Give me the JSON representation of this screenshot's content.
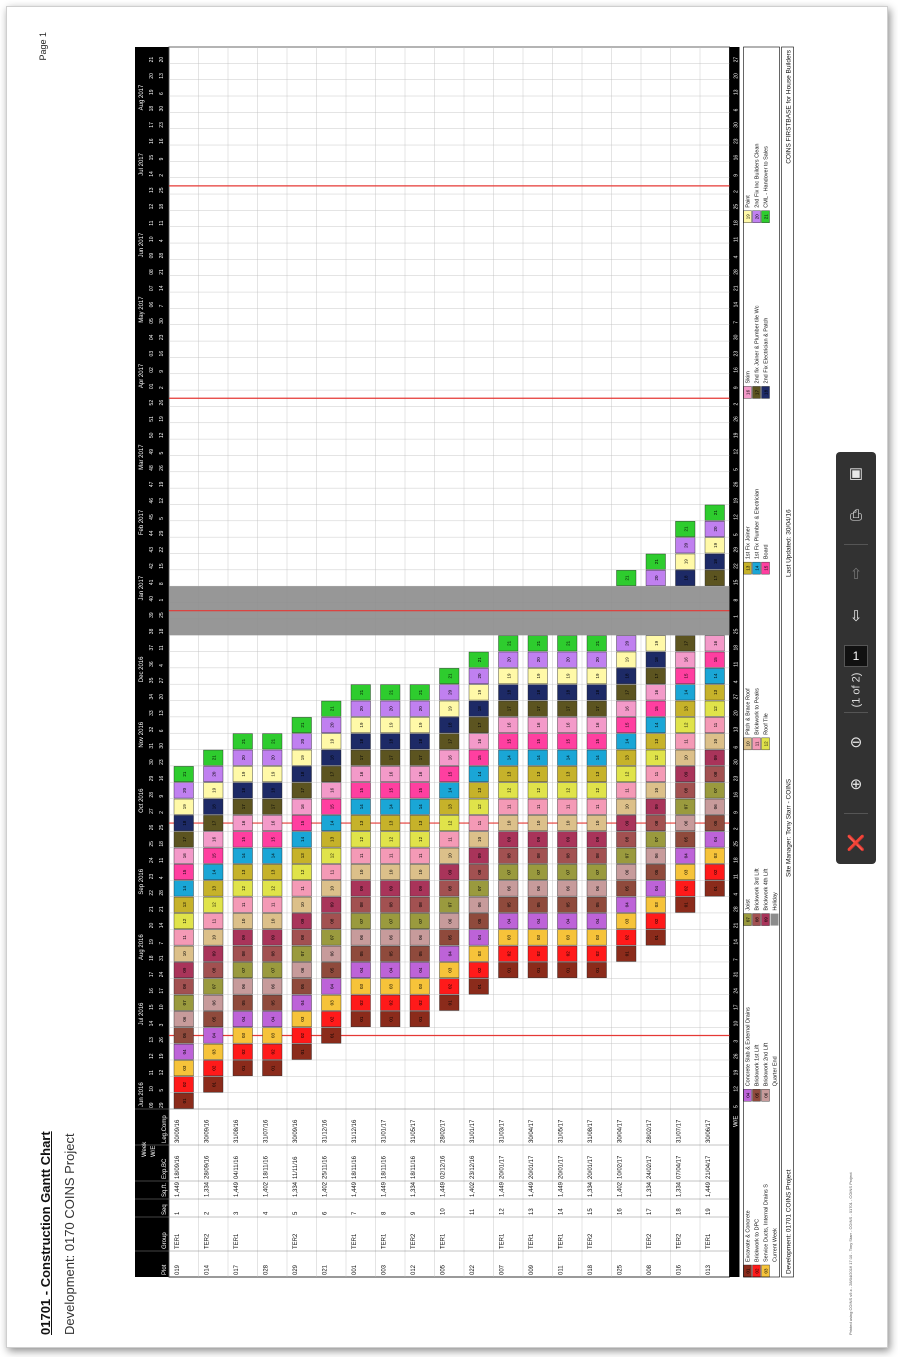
{
  "report": {
    "title": "01701 - Construction Gantt Chart",
    "development": "Development: 0170  COINS Project",
    "page": "Page 1",
    "footnote": "Printed using COINS v9.x - 28/04/2016 17:10 - Tony Starr - COINS - 01701 - COINS Project"
  },
  "headers": {
    "week": "Week",
    "we": "W/E",
    "cols": [
      "Plot",
      "Group",
      "Seq",
      "Sq.ft.",
      "Exp.BC",
      "Leg.Comp"
    ],
    "we_label": "W/E",
    "months": [
      "Jun 2016",
      "Jul 2016",
      "Aug 2016",
      "Sep 2016",
      "Oct 2016",
      "Nov 2016",
      "Dec 2016",
      "Jan 2017",
      "Feb 2017",
      "Mar 2017",
      "Apr 2017",
      "May 2017",
      "Jun 2017",
      "Jul 2017",
      "Aug 2017"
    ],
    "week_numbers": [
      "09",
      "10",
      "11",
      "12",
      "13",
      "14",
      "15",
      "16",
      "17",
      "18",
      "19",
      "20",
      "21",
      "22",
      "23",
      "24",
      "25",
      "26",
      "27",
      "28",
      "29",
      "30",
      "31",
      "32",
      "33",
      "34",
      "35",
      "36",
      "37",
      "38",
      "39",
      "40",
      "41",
      "42",
      "43",
      "44",
      "45",
      "46",
      "47",
      "48",
      "49",
      "50",
      "51",
      "52",
      "01",
      "02",
      "03",
      "04",
      "05",
      "06",
      "07",
      "08",
      "09",
      "10",
      "11",
      "12",
      "13",
      "14",
      "15",
      "16",
      "17",
      "18",
      "19",
      "20",
      "21"
    ],
    "week_days": [
      "29",
      "5",
      "12",
      "19",
      "26",
      "3",
      "10",
      "17",
      "24",
      "31",
      "7",
      "14",
      "21",
      "28",
      "4",
      "11",
      "18",
      "25",
      "2",
      "9",
      "16",
      "23",
      "30",
      "6",
      "13",
      "20",
      "27",
      "4",
      "11",
      "18",
      "25",
      "1",
      "8",
      "15",
      "22",
      "29",
      "5",
      "12",
      "19",
      "26",
      "5",
      "12",
      "19",
      "26",
      "2",
      "9",
      "16",
      "23",
      "30",
      "7",
      "14",
      "21",
      "28",
      "4",
      "11",
      "18",
      "25",
      "2",
      "9",
      "16",
      "23",
      "30",
      "6",
      "13",
      "20"
    ],
    "we_days": [
      "5",
      "12",
      "19",
      "26",
      "3",
      "10",
      "17",
      "24",
      "31",
      "7",
      "14",
      "21",
      "28",
      "4",
      "11",
      "18",
      "25",
      "2",
      "9",
      "16",
      "23",
      "30",
      "6",
      "13",
      "20",
      "27",
      "4",
      "11",
      "18",
      "25",
      "1",
      "8",
      "15",
      "22",
      "29",
      "5",
      "12",
      "19",
      "26",
      "5",
      "12",
      "19",
      "26",
      "2",
      "9",
      "16",
      "23",
      "30",
      "7",
      "14",
      "21",
      "28",
      "4",
      "11",
      "18",
      "25",
      "2",
      "9",
      "16",
      "23",
      "30",
      "6",
      "13",
      "20",
      "27"
    ]
  },
  "plots": [
    {
      "plot": "019",
      "group": "TER1",
      "seq": "1",
      "sqft": "1,449",
      "exp": "18/09/16",
      "comp": "30/09/16",
      "start": 0,
      "n": 21
    },
    {
      "plot": "014",
      "group": "TER2",
      "seq": "2",
      "sqft": "1,334",
      "exp": "28/09/16",
      "comp": "30/09/16",
      "start": 1,
      "n": 21
    },
    {
      "plot": "017",
      "group": "TER1",
      "seq": "3",
      "sqft": "1,449",
      "exp": "04/11/16",
      "comp": "31/08/16",
      "start": 2,
      "n": 21
    },
    {
      "plot": "028",
      "group": "",
      "seq": "4",
      "sqft": "1,402",
      "exp": "18/11/16",
      "comp": "31/07/16",
      "start": 2,
      "n": 21
    },
    {
      "plot": "029",
      "group": "TER2",
      "seq": "5",
      "sqft": "1,334",
      "exp": "11/11/16",
      "comp": "30/09/16",
      "start": 3,
      "n": 21
    },
    {
      "plot": "021",
      "group": "",
      "seq": "6",
      "sqft": "1,402",
      "exp": "25/11/16",
      "comp": "31/12/16",
      "start": 4,
      "n": 21
    },
    {
      "plot": "001",
      "group": "TER1",
      "seq": "7",
      "sqft": "1,449",
      "exp": "18/11/16",
      "comp": "31/12/16",
      "start": 5,
      "n": 21
    },
    {
      "plot": "003",
      "group": "TER1",
      "seq": "8",
      "sqft": "1,449",
      "exp": "18/11/16",
      "comp": "31/01/17",
      "start": 5,
      "n": 21
    },
    {
      "plot": "012",
      "group": "TER2",
      "seq": "9",
      "sqft": "1,334",
      "exp": "18/11/16",
      "comp": "31/05/17",
      "start": 5,
      "n": 21
    },
    {
      "plot": "005",
      "group": "TER1",
      "seq": "10",
      "sqft": "1,449",
      "exp": "02/12/16",
      "comp": "28/02/17",
      "start": 6,
      "n": 21
    },
    {
      "plot": "022",
      "group": "",
      "seq": "11",
      "sqft": "1,402",
      "exp": "23/12/16",
      "comp": "31/01/17",
      "start": 7,
      "n": 21
    },
    {
      "plot": "007",
      "group": "TER1",
      "seq": "12",
      "sqft": "1,449",
      "exp": "20/01/17",
      "comp": "31/03/17",
      "start": 8,
      "n": 21
    },
    {
      "plot": "009",
      "group": "TER1",
      "seq": "13",
      "sqft": "1,449",
      "exp": "20/01/17",
      "comp": "30/04/17",
      "start": 8,
      "n": 21
    },
    {
      "plot": "011",
      "group": "TER1",
      "seq": "14",
      "sqft": "1,449",
      "exp": "20/01/17",
      "comp": "31/05/17",
      "start": 8,
      "n": 21
    },
    {
      "plot": "018",
      "group": "TER2",
      "seq": "15",
      "sqft": "1,334",
      "exp": "20/01/17",
      "comp": "31/08/17",
      "start": 8,
      "n": 21
    },
    {
      "plot": "025",
      "group": "",
      "seq": "16",
      "sqft": "1,402",
      "exp": "10/02/17",
      "comp": "30/04/17",
      "start": 9,
      "n": 21
    },
    {
      "plot": "008",
      "group": "TER2",
      "seq": "17",
      "sqft": "1,334",
      "exp": "24/02/17",
      "comp": "28/02/17",
      "start": 10,
      "n": 21
    },
    {
      "plot": "016",
      "group": "TER2",
      "seq": "18",
      "sqft": "1,334",
      "exp": "07/04/17",
      "comp": "31/07/17",
      "start": 12,
      "n": 21
    },
    {
      "plot": "013",
      "group": "TER1",
      "seq": "19",
      "sqft": "1,449",
      "exp": "21/04/17",
      "comp": "30/06/17",
      "start": 13,
      "n": 21
    }
  ],
  "legend": [
    {
      "code": "01",
      "label": "Excavate & Concrete",
      "color": "#8b2b1b"
    },
    {
      "code": "02",
      "label": "Brickwork to DPC",
      "color": "#ff1a1a"
    },
    {
      "code": "03",
      "label": "Service Ducts, Internal Drains S",
      "color": "#f6c33a"
    },
    {
      "code": "04",
      "label": "Concrete Slab & External Drains",
      "color": "#bd63d8"
    },
    {
      "code": "05",
      "label": "Brickwork 1st Lift",
      "color": "#8f4a3c"
    },
    {
      "code": "06",
      "label": "Brickwork 2nd Lift",
      "color": "#c79b9b"
    },
    {
      "code": "07",
      "label": "Joist",
      "color": "#9a9a3e"
    },
    {
      "code": "08",
      "label": "Brickwork 3rd Lift",
      "color": "#a25151"
    },
    {
      "code": "09",
      "label": "Brickwork 4th Lift",
      "color": "#a9345a"
    },
    {
      "code": "10",
      "label": "Pitch & Brace Roof",
      "color": "#dcc08a"
    },
    {
      "code": "11",
      "label": "Brickwork to Peaks",
      "color": "#f49ab6"
    },
    {
      "code": "12",
      "label": "Roof Tile",
      "color": "#e0e34a"
    },
    {
      "code": "13",
      "label": "1st Fix Joiner",
      "color": "#c6b22a"
    },
    {
      "code": "14",
      "label": "1st Fix Plumber & Electrician",
      "color": "#1aa6d6"
    },
    {
      "code": "15",
      "label": "Board",
      "color": "#ff3fa0"
    },
    {
      "code": "16",
      "label": "Skim",
      "color": "#f39ac9"
    },
    {
      "code": "17",
      "label": "2nd fix Joiner & Plumber tile Wc",
      "color": "#5c5420"
    },
    {
      "code": "18",
      "label": "2nd Fix Electrician & Patch",
      "color": "#1d2a66"
    },
    {
      "code": "19",
      "label": "Paint",
      "color": "#fff9a8"
    },
    {
      "code": "20",
      "label": "2nd Fix Inc Builders Clean",
      "color": "#c080f0"
    },
    {
      "code": "21",
      "label": "CML - Handover to Sales",
      "color": "#2ecc2e"
    }
  ],
  "legend_extra": {
    "current_week": "Current Week",
    "quarter_end": "Quarter End",
    "holiday": "Holiday"
  },
  "footer": {
    "development": "Development: 01701 COINS Project",
    "site_manager": "Site Manager: Tony Starr - COINS",
    "last_updated": "Last Updated: 30/04/16",
    "brand": "COINS FIRSTBASE for House Builders"
  },
  "toolbar": {
    "page_input": "1",
    "page_of": "(1 of 2)"
  }
}
